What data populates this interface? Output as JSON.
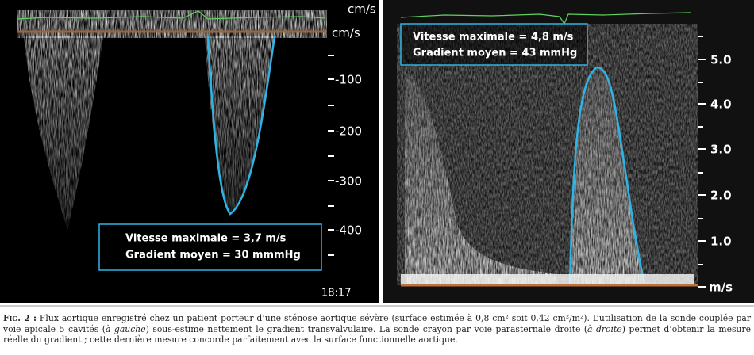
{
  "left_panel": {
    "unit_top": "cm/s",
    "unit_baseline": "cm/s",
    "scale_labels": [
      "-100",
      "-200",
      "-300",
      "-400"
    ],
    "box_lines": [
      "Vitesse maximale = 3,7 m/s",
      "Gradient moyen = 30 mmmHg"
    ],
    "timestamp": "18:17"
  },
  "right_panel": {
    "scale_labels": [
      "5.0",
      "4.0",
      "3.0",
      "2.0",
      "1.0"
    ],
    "unit": "m/s",
    "box_lines": [
      "Vitesse maximale = 4,8 m/s",
      "Gradient moyen = 43 mmHg"
    ]
  },
  "caption": {
    "label": "Fig. 2 :",
    "segments": [
      "Flux aortique enregistré chez un patient porteur d’une sténose aortique sévère (surface estimée à 0,8 cm² soit 0,42 cm²/m²). L’utilisation de la sonde couplée par voie apicale 5 cavités (",
      "à gauche",
      ") sous-estime nettement le gradient transvalvulaire. La sonde crayon par voie parasternale droite (",
      "à droite",
      ") permet d’obtenir la mesure réelle du gradient ; cette dernière mesure concorde parfaitement avec la surface fonctionnelle aortique."
    ]
  }
}
